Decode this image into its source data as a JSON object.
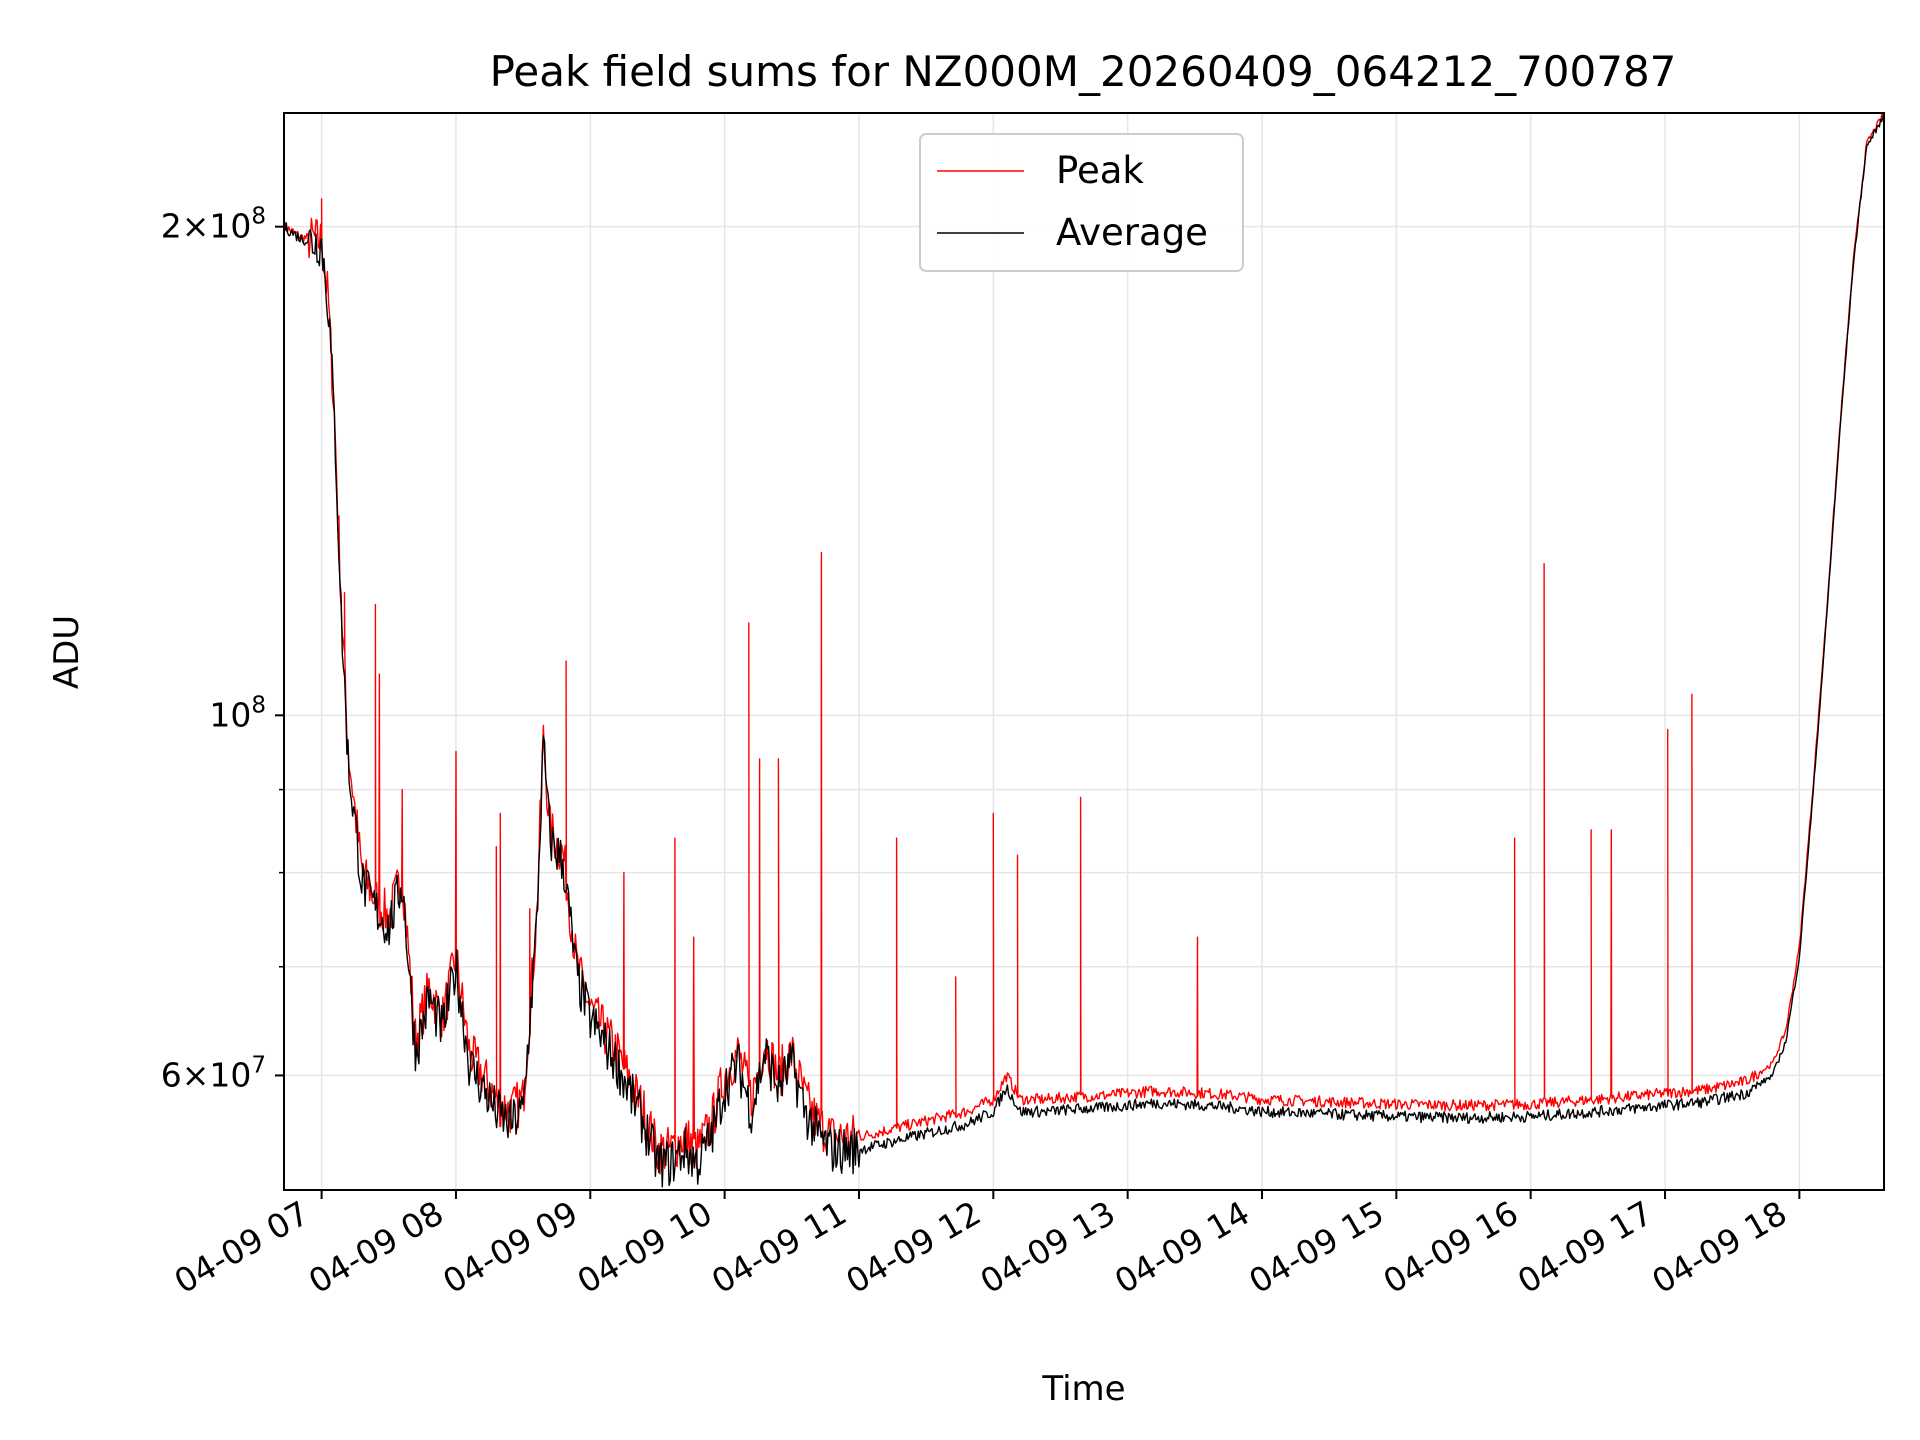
{
  "chart_data": {
    "type": "line",
    "title": "Peak field sums for NZ000M_20260409_064212_700787",
    "xlabel": "Time",
    "ylabel": "ADU",
    "yscale": "log",
    "ylim": [
      51000000,
      235000000
    ],
    "xlim": [
      6.72,
      18.63
    ],
    "grid": true,
    "legend_location": "upper-center",
    "x_ticks": [
      {
        "value": 7,
        "label": "04-09 07"
      },
      {
        "value": 8,
        "label": "04-09 08"
      },
      {
        "value": 9,
        "label": "04-09 09"
      },
      {
        "value": 10,
        "label": "04-09 10"
      },
      {
        "value": 11,
        "label": "04-09 11"
      },
      {
        "value": 12,
        "label": "04-09 12"
      },
      {
        "value": 13,
        "label": "04-09 13"
      },
      {
        "value": 14,
        "label": "04-09 14"
      },
      {
        "value": 15,
        "label": "04-09 15"
      },
      {
        "value": 16,
        "label": "04-09 16"
      },
      {
        "value": 17,
        "label": "04-09 17"
      },
      {
        "value": 18,
        "label": "04-09 18"
      }
    ],
    "y_ticks": [
      {
        "value": 60000000,
        "mantissa": "6",
        "exponent": "7"
      },
      {
        "value": 100000000,
        "mantissa": "",
        "exponent": "8"
      },
      {
        "value": 200000000,
        "mantissa": "2",
        "exponent": "8"
      }
    ],
    "y_minor_gridlines": [
      70000000,
      80000000,
      90000000
    ],
    "series": [
      {
        "name": "Peak",
        "color": "#ff0000",
        "x": [
          6.72,
          6.85,
          7.0,
          7.05,
          7.1,
          7.15,
          7.2,
          7.3,
          7.4,
          7.5,
          7.6,
          7.7,
          7.8,
          7.9,
          8.0,
          8.1,
          8.2,
          8.3,
          8.4,
          8.5,
          8.6,
          8.65,
          8.7,
          8.8,
          8.9,
          9.0,
          9.2,
          9.4,
          9.5,
          9.6,
          9.7,
          9.8,
          9.9,
          10.0,
          10.1,
          10.2,
          10.3,
          10.4,
          10.5,
          10.6,
          10.7,
          10.8,
          11.0,
          11.2,
          11.4,
          11.6,
          11.8,
          12.0,
          12.1,
          12.2,
          12.4,
          12.6,
          12.8,
          13.0,
          13.2,
          13.4,
          13.6,
          13.8,
          14.0,
          14.5,
          15.0,
          15.5,
          16.0,
          16.5,
          17.0,
          17.3,
          17.6,
          17.8,
          17.9,
          18.0,
          18.1,
          18.2,
          18.3,
          18.4,
          18.5,
          18.63
        ],
        "y": [
          200000000,
          197000000,
          196000000,
          180000000,
          150000000,
          115000000,
          95000000,
          80000000,
          77000000,
          75000000,
          80000000,
          63000000,
          68000000,
          65000000,
          71000000,
          62000000,
          60000000,
          58000000,
          57000000,
          58000000,
          75000000,
          97000000,
          85000000,
          82000000,
          70000000,
          66000000,
          62000000,
          57000000,
          54000000,
          54000000,
          55000000,
          54000000,
          56000000,
          60000000,
          62000000,
          58000000,
          63000000,
          60000000,
          62000000,
          58000000,
          56000000,
          55000000,
          55000000,
          55500000,
          56000000,
          56500000,
          57000000,
          58000000,
          60000000,
          58000000,
          58000000,
          58200000,
          58300000,
          58500000,
          58700000,
          58600000,
          58500000,
          58300000,
          58000000,
          57800000,
          57600000,
          57500000,
          57600000,
          58000000,
          58500000,
          58800000,
          59500000,
          61000000,
          64000000,
          72000000,
          90000000,
          115000000,
          150000000,
          190000000,
          225000000,
          235000000
        ],
        "spikes": [
          [
            7.0,
            208000000
          ],
          [
            7.17,
            119000000
          ],
          [
            7.4,
            117000000
          ],
          [
            7.43,
            106000000
          ],
          [
            7.6,
            90000000
          ],
          [
            8.0,
            95000000
          ],
          [
            8.3,
            83000000
          ],
          [
            8.33,
            87000000
          ],
          [
            8.55,
            76000000
          ],
          [
            8.82,
            108000000
          ],
          [
            9.25,
            80000000
          ],
          [
            9.63,
            84000000
          ],
          [
            9.77,
            73000000
          ],
          [
            10.18,
            114000000
          ],
          [
            10.26,
            94000000
          ],
          [
            10.4,
            94000000
          ],
          [
            10.72,
            126000000
          ],
          [
            11.28,
            84000000
          ],
          [
            11.72,
            69000000
          ],
          [
            12.0,
            87000000
          ],
          [
            12.18,
            82000000
          ],
          [
            12.65,
            89000000
          ],
          [
            13.52,
            73000000
          ],
          [
            15.88,
            84000000
          ],
          [
            16.1,
            124000000
          ],
          [
            16.45,
            85000000
          ],
          [
            16.6,
            85000000
          ],
          [
            17.02,
            98000000
          ],
          [
            17.2,
            103000000
          ]
        ]
      },
      {
        "name": "Average",
        "color": "#000000",
        "x": [
          6.72,
          6.85,
          7.0,
          7.05,
          7.1,
          7.15,
          7.2,
          7.3,
          7.4,
          7.5,
          7.6,
          7.7,
          7.8,
          7.9,
          8.0,
          8.1,
          8.2,
          8.3,
          8.4,
          8.5,
          8.6,
          8.65,
          8.7,
          8.8,
          8.9,
          9.0,
          9.2,
          9.4,
          9.5,
          9.6,
          9.7,
          9.8,
          9.9,
          10.0,
          10.1,
          10.2,
          10.3,
          10.4,
          10.5,
          10.6,
          10.7,
          10.8,
          11.0,
          11.2,
          11.4,
          11.6,
          11.8,
          12.0,
          12.1,
          12.2,
          12.4,
          12.6,
          12.8,
          13.0,
          13.2,
          13.4,
          13.6,
          13.8,
          14.0,
          14.5,
          15.0,
          15.5,
          16.0,
          16.5,
          17.0,
          17.3,
          17.6,
          17.8,
          17.9,
          18.0,
          18.1,
          18.2,
          18.3,
          18.4,
          18.5,
          18.63
        ],
        "y": [
          200000000,
          196500000,
          195500000,
          179000000,
          149000000,
          113000000,
          93000000,
          79000000,
          76000000,
          74000000,
          79000000,
          62000000,
          67000000,
          64000000,
          70000000,
          61000000,
          59000000,
          57000000,
          56000000,
          57000000,
          74000000,
          96000000,
          84000000,
          81000000,
          69000000,
          65000000,
          61000000,
          56000000,
          53000000,
          53000000,
          54000000,
          53000000,
          55000000,
          59000000,
          61000000,
          57000000,
          62000000,
          59000000,
          61000000,
          57000000,
          55000000,
          54000000,
          54000000,
          54500000,
          55000000,
          55500000,
          56000000,
          57000000,
          59000000,
          57000000,
          57000000,
          57200000,
          57300000,
          57500000,
          57700000,
          57600000,
          57500000,
          57300000,
          57000000,
          56800000,
          56600000,
          56500000,
          56600000,
          57000000,
          57500000,
          57800000,
          58500000,
          60000000,
          63000000,
          71000000,
          89000000,
          114000000,
          149000000,
          189000000,
          224000000,
          234000000
        ]
      }
    ]
  }
}
